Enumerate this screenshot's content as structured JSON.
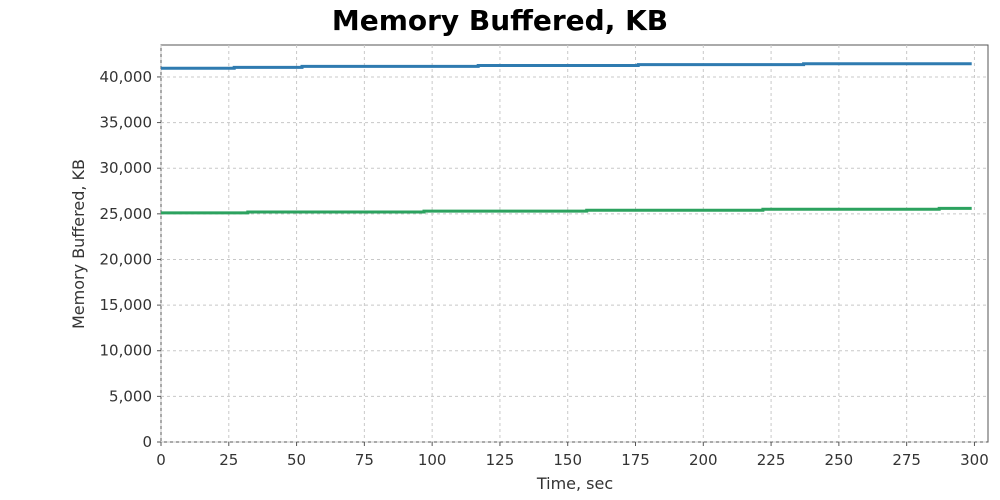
{
  "chart_data": {
    "type": "line",
    "title": "Memory Buffered, KB",
    "xlabel": "Time, sec",
    "ylabel": "Memory Buffered, KB",
    "xlim": [
      0,
      305
    ],
    "ylim": [
      0,
      43500
    ],
    "x_ticks": [
      0,
      25,
      50,
      75,
      100,
      125,
      150,
      175,
      200,
      225,
      250,
      275,
      300
    ],
    "y_ticks": [
      0,
      5000,
      10000,
      15000,
      20000,
      25000,
      30000,
      35000,
      40000
    ],
    "y_tick_labels": [
      "0",
      "5,000",
      "10,000",
      "15,000",
      "20,000",
      "25,000",
      "30,000",
      "35,000",
      "40,000"
    ],
    "grid": true,
    "legend": "none",
    "step": true,
    "series": [
      {
        "color": "#2f7bb0",
        "x": [
          0,
          27,
          52,
          117,
          176,
          237,
          299
        ],
        "values": [
          40950,
          41050,
          41150,
          41250,
          41350,
          41450,
          41450
        ]
      },
      {
        "color": "#2ca25f",
        "x": [
          0,
          32,
          97,
          157,
          222,
          287,
          299
        ],
        "values": [
          25100,
          25200,
          25300,
          25400,
          25500,
          25600,
          25600
        ]
      }
    ]
  }
}
